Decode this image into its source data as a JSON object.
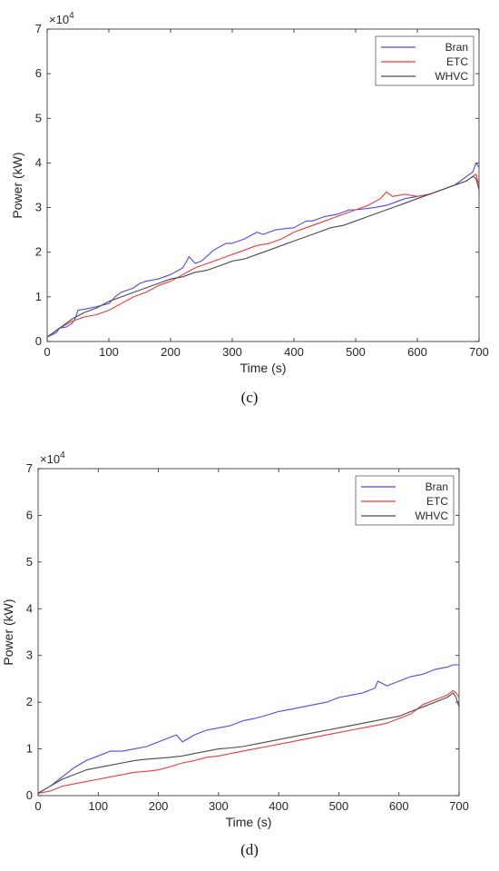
{
  "chart_data": [
    {
      "type": "line",
      "caption": "(c)",
      "xlabel": "Time (s)",
      "ylabel": "Power (kW)",
      "multiplier_base": "×10",
      "multiplier_exp": "4",
      "xlim": [
        0,
        700
      ],
      "ylim": [
        0,
        7
      ],
      "xticks": [
        0,
        100,
        200,
        300,
        400,
        500,
        600,
        700
      ],
      "yticks": [
        0,
        1,
        2,
        3,
        4,
        5,
        6,
        7
      ],
      "grid": false,
      "legend_position": "top-right",
      "series": [
        {
          "name": "Bran",
          "color": "#4b4bea",
          "x": [
            0,
            15,
            20,
            30,
            40,
            45,
            50,
            60,
            80,
            100,
            110,
            120,
            140,
            150,
            160,
            180,
            200,
            220,
            230,
            240,
            250,
            270,
            290,
            300,
            320,
            340,
            350,
            370,
            400,
            420,
            430,
            450,
            470,
            490,
            500,
            530,
            550,
            560,
            580,
            600,
            620,
            640,
            660,
            680,
            690,
            695,
            700
          ],
          "y": [
            0.1,
            0.2,
            0.3,
            0.32,
            0.4,
            0.5,
            0.7,
            0.72,
            0.78,
            0.85,
            1.0,
            1.1,
            1.2,
            1.3,
            1.35,
            1.4,
            1.5,
            1.65,
            1.9,
            1.75,
            1.8,
            2.05,
            2.2,
            2.2,
            2.3,
            2.45,
            2.4,
            2.5,
            2.55,
            2.7,
            2.7,
            2.8,
            2.85,
            2.95,
            2.95,
            3.0,
            3.05,
            3.1,
            3.2,
            3.25,
            3.3,
            3.4,
            3.5,
            3.7,
            3.8,
            4.0,
            3.9
          ]
        },
        {
          "name": "ETC",
          "color": "#e83c3c",
          "x": [
            0,
            20,
            40,
            60,
            80,
            100,
            120,
            140,
            160,
            180,
            200,
            220,
            240,
            260,
            280,
            300,
            320,
            340,
            360,
            380,
            400,
            420,
            440,
            460,
            480,
            500,
            520,
            540,
            550,
            560,
            580,
            600,
            620,
            640,
            660,
            680,
            690,
            695,
            700
          ],
          "y": [
            0.1,
            0.3,
            0.45,
            0.55,
            0.6,
            0.7,
            0.85,
            1.0,
            1.1,
            1.25,
            1.35,
            1.5,
            1.65,
            1.75,
            1.85,
            1.95,
            2.05,
            2.15,
            2.2,
            2.3,
            2.45,
            2.55,
            2.65,
            2.75,
            2.85,
            2.95,
            3.05,
            3.2,
            3.35,
            3.25,
            3.3,
            3.25,
            3.3,
            3.4,
            3.5,
            3.6,
            3.7,
            3.75,
            3.5
          ]
        },
        {
          "name": "WHVC",
          "color": "#4a4a4a",
          "x": [
            0,
            20,
            40,
            60,
            80,
            100,
            120,
            140,
            160,
            180,
            200,
            220,
            240,
            260,
            280,
            300,
            320,
            340,
            360,
            380,
            400,
            420,
            440,
            460,
            480,
            500,
            520,
            540,
            560,
            580,
            600,
            620,
            640,
            660,
            680,
            690,
            695,
            700
          ],
          "y": [
            0.1,
            0.3,
            0.5,
            0.65,
            0.75,
            0.9,
            1.0,
            1.1,
            1.2,
            1.3,
            1.4,
            1.45,
            1.55,
            1.6,
            1.7,
            1.8,
            1.85,
            1.95,
            2.05,
            2.15,
            2.25,
            2.35,
            2.45,
            2.55,
            2.6,
            2.7,
            2.8,
            2.9,
            3.0,
            3.1,
            3.2,
            3.3,
            3.4,
            3.5,
            3.6,
            3.7,
            3.65,
            3.4
          ]
        }
      ]
    },
    {
      "type": "line",
      "caption": "(d)",
      "xlabel": "Time (s)",
      "ylabel": "Power (kW)",
      "multiplier_base": "×10",
      "multiplier_exp": "4",
      "xlim": [
        0,
        700
      ],
      "ylim": [
        0,
        7
      ],
      "xticks": [
        0,
        100,
        200,
        300,
        400,
        500,
        600,
        700
      ],
      "yticks": [
        0,
        1,
        2,
        3,
        4,
        5,
        6,
        7
      ],
      "grid": false,
      "legend_position": "top-right",
      "series": [
        {
          "name": "Bran",
          "color": "#4b4bea",
          "x": [
            0,
            20,
            40,
            60,
            80,
            100,
            120,
            140,
            160,
            180,
            200,
            210,
            230,
            240,
            260,
            280,
            300,
            320,
            340,
            360,
            380,
            400,
            420,
            440,
            460,
            480,
            500,
            520,
            540,
            560,
            565,
            580,
            600,
            620,
            640,
            660,
            680,
            690,
            700
          ],
          "y": [
            0.05,
            0.2,
            0.4,
            0.6,
            0.75,
            0.85,
            0.95,
            0.95,
            1.0,
            1.05,
            1.15,
            1.2,
            1.3,
            1.15,
            1.3,
            1.4,
            1.45,
            1.5,
            1.6,
            1.65,
            1.72,
            1.8,
            1.85,
            1.9,
            1.95,
            2.0,
            2.1,
            2.15,
            2.2,
            2.3,
            2.45,
            2.35,
            2.45,
            2.55,
            2.6,
            2.7,
            2.75,
            2.8,
            2.8
          ]
        },
        {
          "name": "ETC",
          "color": "#e83c3c",
          "x": [
            0,
            20,
            40,
            60,
            80,
            100,
            120,
            140,
            160,
            180,
            200,
            220,
            240,
            260,
            280,
            300,
            320,
            340,
            360,
            380,
            400,
            420,
            440,
            460,
            480,
            500,
            520,
            540,
            560,
            580,
            600,
            620,
            640,
            660,
            680,
            690,
            695,
            700
          ],
          "y": [
            0.05,
            0.1,
            0.2,
            0.25,
            0.3,
            0.35,
            0.4,
            0.45,
            0.5,
            0.52,
            0.55,
            0.62,
            0.7,
            0.75,
            0.82,
            0.85,
            0.9,
            0.95,
            1.0,
            1.05,
            1.1,
            1.15,
            1.2,
            1.25,
            1.3,
            1.35,
            1.4,
            1.45,
            1.5,
            1.55,
            1.65,
            1.75,
            1.95,
            2.05,
            2.15,
            2.25,
            2.2,
            2.1
          ]
        },
        {
          "name": "WHVC",
          "color": "#4a4a4a",
          "x": [
            0,
            20,
            40,
            60,
            80,
            100,
            120,
            140,
            160,
            180,
            200,
            220,
            240,
            260,
            280,
            300,
            320,
            340,
            360,
            380,
            400,
            420,
            440,
            460,
            480,
            500,
            520,
            540,
            560,
            580,
            600,
            620,
            640,
            660,
            680,
            690,
            695,
            700
          ],
          "y": [
            0.05,
            0.2,
            0.35,
            0.45,
            0.55,
            0.6,
            0.65,
            0.7,
            0.75,
            0.78,
            0.8,
            0.82,
            0.85,
            0.9,
            0.95,
            1.0,
            1.02,
            1.05,
            1.1,
            1.15,
            1.2,
            1.25,
            1.3,
            1.35,
            1.4,
            1.45,
            1.5,
            1.55,
            1.6,
            1.65,
            1.7,
            1.8,
            1.9,
            2.0,
            2.1,
            2.2,
            2.1,
            1.9
          ]
        }
      ]
    }
  ]
}
